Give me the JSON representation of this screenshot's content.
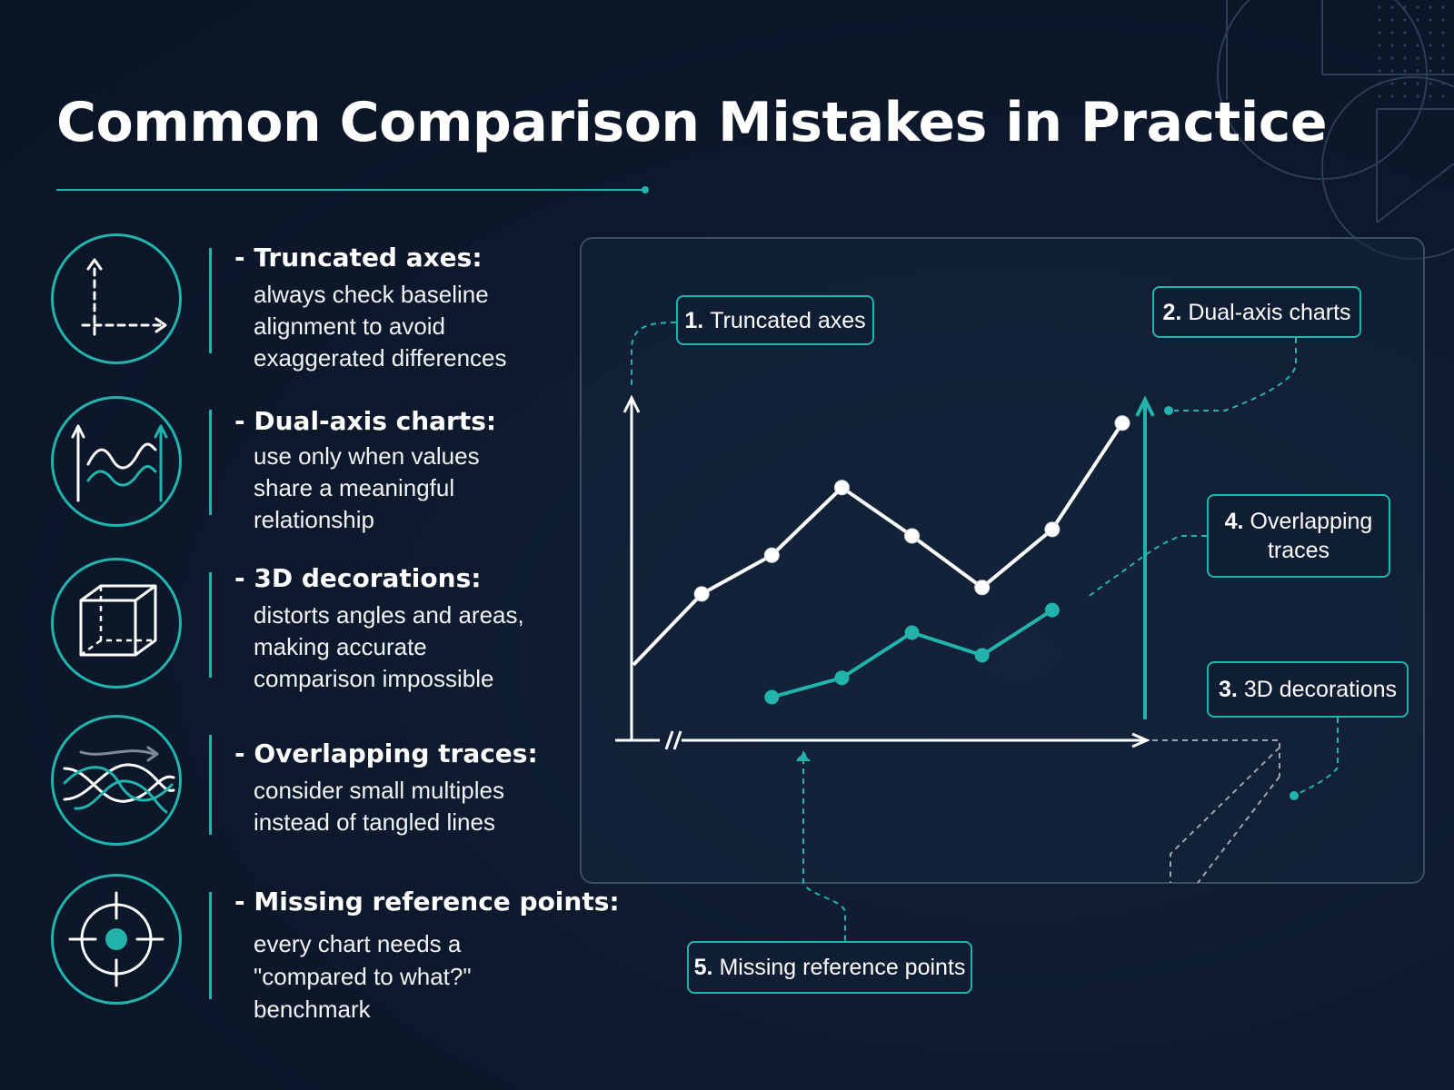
{
  "title": "Common Comparison Mistakes in Practice",
  "colors": {
    "background": "#0c182b",
    "accent": "#22b3ad",
    "text": "#ffffff",
    "panel_border": "#3b4c63"
  },
  "items": [
    {
      "icon": "axes-icon",
      "title": "- Truncated axes:",
      "lines": [
        "always check baseline",
        "alignment to avoid",
        "exaggerated differences"
      ]
    },
    {
      "icon": "dual-axis-icon",
      "title": "- Dual-axis charts:",
      "lines": [
        "use only when values",
        "share a meaningful",
        "relationship"
      ]
    },
    {
      "icon": "cube-icon",
      "title": "- 3D decorations:",
      "lines": [
        "distorts angles and areas,",
        "making accurate",
        "comparison impossible"
      ]
    },
    {
      "icon": "tangled-lines-icon",
      "title": "- Overlapping traces:",
      "lines": [
        "consider small multiples",
        "instead of tangled lines"
      ]
    },
    {
      "icon": "crosshair-icon",
      "title": "- Missing reference points:",
      "lines": [
        "every chart needs a",
        "\"compared to what?\"",
        "benchmark"
      ]
    }
  ],
  "callouts": [
    {
      "num": "1.",
      "text": "Truncated axes"
    },
    {
      "num": "2.",
      "text": "Dual-axis charts"
    },
    {
      "num": "3.",
      "text": "3D decorations"
    },
    {
      "num": "4.",
      "text": "Overlapping traces"
    },
    {
      "num": "5.",
      "text": "Missing reference points"
    }
  ],
  "chart_data": {
    "type": "line",
    "title": "",
    "xlabel": "",
    "ylabel": "",
    "axis_break": true,
    "series": [
      {
        "color": "#ffffff",
        "values": [
          20,
          42,
          54,
          75,
          60,
          44,
          62,
          95
        ],
        "x": [
          0,
          1,
          2,
          3,
          4,
          5,
          6,
          7
        ]
      },
      {
        "color": "#22b3ad",
        "values": [
          10,
          16,
          30,
          23,
          37
        ],
        "x": [
          2,
          3,
          4,
          5,
          6
        ]
      }
    ]
  }
}
